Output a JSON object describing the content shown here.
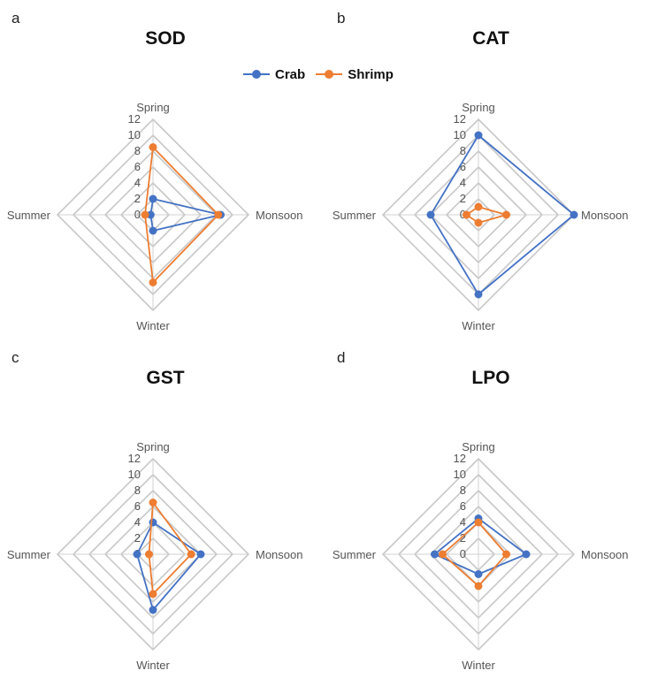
{
  "legend": {
    "series": [
      {
        "name": "Crab",
        "color": "#4472C4"
      },
      {
        "name": "Shrimp",
        "color": "#ED7D31"
      }
    ]
  },
  "chart_data": [
    {
      "type": "radar",
      "panel_label": "a",
      "title": "SOD",
      "categories": [
        "Spring",
        "Monsoon",
        "Winter",
        "Summer"
      ],
      "r_ticks": [
        "0",
        "2",
        "4",
        "6",
        "8",
        "10",
        "12"
      ],
      "rlim": [
        0,
        12
      ],
      "grid": true,
      "series": [
        {
          "name": "Crab",
          "color": "#4472C4",
          "values": [
            2,
            8.5,
            2,
            0.3
          ]
        },
        {
          "name": "Shrimp",
          "color": "#ED7D31",
          "values": [
            8.5,
            8.2,
            8.5,
            1
          ]
        }
      ]
    },
    {
      "type": "radar",
      "panel_label": "b",
      "title": "CAT",
      "categories": [
        "Spring",
        "Monsoon",
        "Winter",
        "Summer"
      ],
      "r_ticks": [
        "0",
        "2",
        "4",
        "6",
        "8",
        "10",
        "12"
      ],
      "rlim": [
        0,
        12
      ],
      "grid": true,
      "series": [
        {
          "name": "Crab",
          "color": "#4472C4",
          "values": [
            10,
            12,
            10,
            6
          ]
        },
        {
          "name": "Shrimp",
          "color": "#ED7D31",
          "values": [
            1,
            3.5,
            1,
            1.5
          ]
        }
      ]
    },
    {
      "type": "radar",
      "panel_label": "c",
      "title": "GST",
      "categories": [
        "Spring",
        "Monsoon",
        "Winter",
        "Summer"
      ],
      "r_ticks": [
        "0",
        "2",
        "4",
        "6",
        "8",
        "10",
        "12"
      ],
      "rlim": [
        0,
        12
      ],
      "grid": true,
      "series": [
        {
          "name": "Crab",
          "color": "#4472C4",
          "values": [
            4,
            6,
            7,
            2
          ]
        },
        {
          "name": "Shrimp",
          "color": "#ED7D31",
          "values": [
            6.5,
            4.8,
            5,
            0.5
          ]
        }
      ]
    },
    {
      "type": "radar",
      "panel_label": "d",
      "title": "LPO",
      "categories": [
        "Spring",
        "Monsoon",
        "Winter",
        "Summer"
      ],
      "r_ticks": [
        "0",
        "2",
        "4",
        "6",
        "8",
        "10",
        "12"
      ],
      "rlim": [
        0,
        12
      ],
      "grid": true,
      "series": [
        {
          "name": "Crab",
          "color": "#4472C4",
          "values": [
            4.5,
            6,
            2.5,
            5.5
          ]
        },
        {
          "name": "Shrimp",
          "color": "#ED7D31",
          "values": [
            4,
            3.5,
            4,
            4.5
          ]
        }
      ]
    }
  ]
}
